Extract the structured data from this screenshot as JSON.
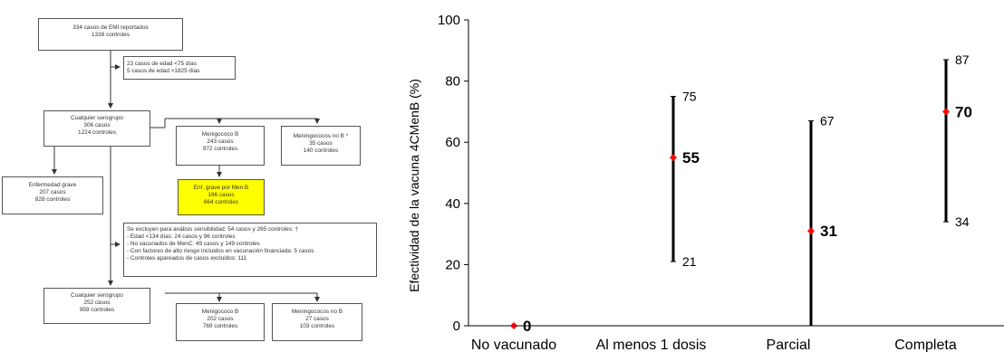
{
  "flowchart": {
    "reported": {
      "l1": "334 casos de EMI reportados",
      "l2": "1338 controles"
    },
    "excluded_age": {
      "l1": "23 casos de edad <75 días",
      "l2": "5 casos de edad >1825 días"
    },
    "any_sero_1": {
      "l1": "Cualquier serogrupo",
      "l2": "306 casos",
      "l3": "1224 controles"
    },
    "menb_1": {
      "l1": "Menigococo B",
      "l2": "243 casos",
      "l3": "972 controles"
    },
    "non_b_1": {
      "l1": "Meningococos no B *",
      "l2": "35 casos",
      "l3": "140 controles"
    },
    "severe_any": {
      "l1": "Enfermedad grave",
      "l2": "207 casos",
      "l3": "828 controles"
    },
    "severe_menb": {
      "l1": "Enf. grave por Men B",
      "l2": "166 casos",
      "l3": "664 controles"
    },
    "sensitivity": {
      "title": "Se excluyen para análisis sensibilidad: 54 casos y 265 controles: †",
      "items": [
        "- Edad <134 días: 24 casos y 96 controles",
        "- No vacunados de MenC: 49 casos y 149 controles",
        "- Con factores de alto riesgo incluidos en vacunación financiada: 5 casos",
        "- Controles apareados de casos excluidos: 111"
      ]
    },
    "any_sero_2": {
      "l1": "Cualquier serogrupo",
      "l2": "252 casos",
      "l3": "959 controles"
    },
    "menb_2": {
      "l1": "Menigococo B",
      "l2": "202 casos",
      "l3": "769 controles"
    },
    "non_b_2": {
      "l1": "Meningococos no B",
      "l2": "27 casos",
      "l3": "103 controles"
    }
  },
  "chart_data": {
    "type": "scatter",
    "ylabel": "Efectividad de la vacuna 4CMenB (%)",
    "xlabel": "",
    "ylim": [
      0,
      100
    ],
    "yticks": [
      0,
      20,
      40,
      60,
      80,
      100
    ],
    "categories": [
      "No vacunado",
      "Al menos 1 dosis",
      "Parcial",
      "Completa"
    ],
    "estimates": [
      0,
      55,
      31,
      70
    ],
    "lower": [
      null,
      21,
      0,
      34
    ],
    "upper": [
      null,
      75,
      67,
      87
    ],
    "lower_labels": [
      "",
      "21",
      "",
      "34"
    ],
    "upper_labels": [
      "",
      "75",
      "67",
      "87"
    ],
    "point_color": "#ff0000",
    "bar_color": "#000000",
    "grid": false
  }
}
